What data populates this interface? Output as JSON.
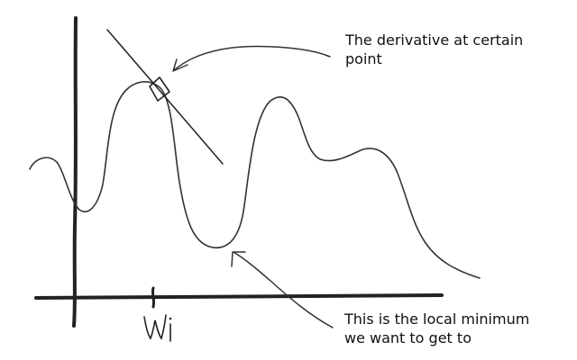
{
  "annotations": {
    "derivative": {
      "line1": "The derivative at certain",
      "line2": "point"
    },
    "minimum": {
      "line1": "This is the local minimum",
      "line2": "we want to get to"
    }
  },
  "axis": {
    "x_tick_label": "Wi"
  },
  "colors": {
    "ink": "#222222",
    "background": "#ffffff"
  }
}
